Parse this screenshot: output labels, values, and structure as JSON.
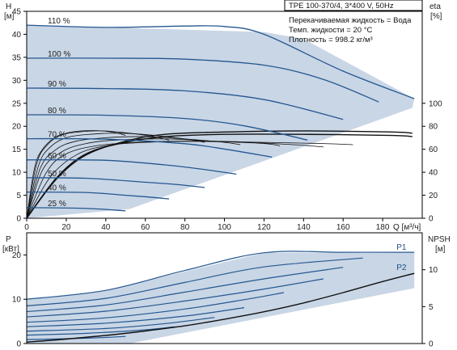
{
  "colors": {
    "envelope": "#c9d6e6",
    "curve": "#24578f",
    "efficiency": "#111111",
    "frame": "#000000"
  },
  "info_box": {
    "title": "TPE 100-370/4, 3*400 V, 50Hz",
    "line1": "Перекачиваемая жидкость = Вода",
    "line2": "Темп. жидкости = 20 °C",
    "line3": "Плотность = 998.2 кг/м³"
  },
  "top_axes": {
    "y_left_title": "H",
    "y_left_unit": "[м]",
    "y_right_title": "eta",
    "y_right_unit": "[%]",
    "x_unit": "Q [м³/ч]"
  },
  "bottom_axes": {
    "y_left_title": "P",
    "y_left_unit": "[кВт]",
    "y_right_title": "NPSH",
    "y_right_unit": "[м]"
  },
  "chart_data": [
    {
      "type": "line",
      "xlim": [
        0,
        200
      ],
      "ylim": [
        0,
        45
      ],
      "y2lim": [
        0,
        180
      ],
      "x_ticks": [
        0,
        20,
        40,
        60,
        80,
        100,
        120,
        140,
        160,
        180
      ],
      "y_ticks": [
        0,
        5,
        10,
        15,
        20,
        25,
        30,
        35,
        40,
        45
      ],
      "y2_ticks": [
        0,
        20,
        40,
        60,
        80,
        100
      ],
      "grid": false,
      "envelope": {
        "x": [
          0,
          52,
          195,
          196,
          140,
          120,
          0
        ],
        "y": [
          0,
          2,
          24,
          26,
          39,
          40.5,
          42
        ]
      },
      "series": [
        {
          "name": "110 %",
          "x": [
            0,
            40,
            80,
            100,
            120,
            160,
            196
          ],
          "y": [
            42,
            41.5,
            41.8,
            41.7,
            40,
            32,
            26
          ]
        },
        {
          "name": "100 %",
          "x": [
            0,
            40,
            80,
            120,
            150,
            178
          ],
          "y": [
            34.8,
            34.8,
            34.6,
            33.3,
            30.2,
            25.3
          ]
        },
        {
          "name": "90 %",
          "x": [
            0,
            40,
            80,
            120,
            160
          ],
          "y": [
            28.3,
            28.2,
            27.7,
            25.8,
            21.5
          ]
        },
        {
          "name": "80 %",
          "x": [
            0,
            40,
            80,
            110,
            142
          ],
          "y": [
            22.5,
            22.4,
            21.7,
            20.1,
            17
          ]
        },
        {
          "name": "70 %",
          "x": [
            0,
            40,
            80,
            102,
            124
          ],
          "y": [
            17.3,
            17.2,
            16.2,
            14.9,
            13.3
          ]
        },
        {
          "name": "60 %",
          "x": [
            0,
            40,
            70,
            88,
            106
          ],
          "y": [
            12.7,
            12.6,
            11.6,
            10.7,
            9.6
          ]
        },
        {
          "name": "50 %",
          "x": [
            0,
            30,
            58,
            74,
            90
          ],
          "y": [
            8.8,
            8.7,
            7.9,
            7.4,
            6.7
          ]
        },
        {
          "name": "40 %",
          "x": [
            0,
            30,
            50,
            62,
            72
          ],
          "y": [
            5.7,
            5.6,
            5,
            4.6,
            4.2
          ]
        },
        {
          "name": "25 %",
          "x": [
            0,
            25,
            37,
            44,
            50
          ],
          "y": [
            2.3,
            2.2,
            2,
            1.8,
            1.6
          ]
        }
      ],
      "efficiency_series_percent": [
        {
          "x": [
            0,
            15,
            30,
            50,
            70,
            100,
            140,
            185,
            195
          ],
          "y": [
            0,
            34,
            55,
            67,
            73,
            75,
            76,
            75,
            74
          ]
        },
        {
          "x": [
            0,
            15,
            30,
            50,
            70,
            100,
            140,
            185,
            195
          ],
          "y": [
            0,
            35,
            56,
            66,
            71,
            73,
            73,
            72,
            71
          ]
        },
        {
          "x": [
            0,
            12,
            25,
            40,
            60,
            90,
            120,
            150,
            165
          ],
          "y": [
            0,
            36,
            55,
            63,
            66,
            67,
            66,
            65,
            64
          ]
        },
        {
          "x": [
            0,
            10,
            20,
            35,
            55,
            80,
            110,
            135,
            150
          ],
          "y": [
            0,
            40,
            56,
            63,
            66,
            67,
            66,
            64,
            62
          ]
        },
        {
          "x": [
            0,
            8,
            18,
            30,
            45,
            70,
            95,
            120,
            128
          ],
          "y": [
            0,
            42,
            58,
            65,
            68,
            69,
            67,
            65,
            63
          ]
        },
        {
          "x": [
            0,
            7,
            15,
            25,
            40,
            60,
            80,
            100,
            108
          ],
          "y": [
            0,
            44,
            60,
            67,
            70,
            71,
            69,
            66,
            64
          ]
        },
        {
          "x": [
            0,
            6,
            12,
            20,
            32,
            48,
            65,
            80,
            90
          ],
          "y": [
            0,
            46,
            62,
            70,
            73,
            74,
            72,
            69,
            66
          ]
        },
        {
          "x": [
            0,
            5,
            10,
            17,
            26,
            38,
            52,
            64,
            72
          ],
          "y": [
            0,
            47,
            63,
            72,
            75,
            76,
            74,
            71,
            68
          ]
        },
        {
          "x": [
            0,
            4,
            8,
            14,
            20,
            28,
            38,
            46,
            50
          ],
          "y": [
            0,
            44,
            60,
            70,
            74,
            76,
            76,
            74,
            72
          ]
        }
      ]
    },
    {
      "type": "line",
      "xlim": [
        0,
        200
      ],
      "ylim": [
        0,
        25
      ],
      "y2lim": [
        0,
        15
      ],
      "y_ticks": [
        0,
        10,
        20
      ],
      "y2_ticks": [
        0,
        5,
        10
      ],
      "grid": false,
      "envelope": {
        "x": [
          0,
          52,
          196,
          196,
          120,
          40,
          0
        ],
        "y": [
          0,
          0,
          12.5,
          20.5,
          20.5,
          12,
          10
        ]
      },
      "series": [
        {
          "name": "P1",
          "x": [
            0,
            40,
            80,
            120,
            160,
            196
          ],
          "y": [
            10,
            12,
            16.5,
            20.5,
            20.6,
            20.6
          ]
        },
        {
          "name": "",
          "x": [
            0,
            40,
            80,
            120,
            170
          ],
          "y": [
            8.5,
            10.2,
            13.8,
            17.3,
            19.3
          ]
        },
        {
          "name": "",
          "x": [
            0,
            40,
            80,
            120,
            160
          ],
          "y": [
            7.2,
            8.7,
            11.6,
            14.6,
            17.2
          ]
        },
        {
          "name": "",
          "x": [
            0,
            40,
            80,
            120,
            150
          ],
          "y": [
            6,
            7.3,
            9.6,
            12.3,
            14.6
          ]
        },
        {
          "name": "",
          "x": [
            0,
            40,
            80,
            110,
            130
          ],
          "y": [
            4.8,
            5.8,
            7.8,
            9.9,
            11.5
          ]
        },
        {
          "name": "",
          "x": [
            0,
            40,
            80,
            110
          ],
          "y": [
            3.8,
            4.6,
            6.2,
            8.1
          ]
        },
        {
          "name": "",
          "x": [
            0,
            40,
            70,
            95
          ],
          "y": [
            2.8,
            3.4,
            4.5,
            5.9
          ]
        },
        {
          "name": "",
          "x": [
            0,
            30,
            60,
            75
          ],
          "y": [
            1.9,
            2.3,
            3.1,
            3.8
          ]
        },
        {
          "name": "",
          "x": [
            0,
            30,
            50
          ],
          "y": [
            0.9,
            1.2,
            1.6
          ]
        }
      ],
      "npsh_series": {
        "name": "P2",
        "x": [
          0,
          20,
          40,
          60,
          80,
          100,
          120,
          140,
          160,
          180,
          196
        ],
        "y": [
          0.2,
          0.6,
          1.1,
          1.7,
          2.4,
          3.3,
          4.3,
          5.5,
          6.9,
          8.4,
          9.5
        ]
      }
    }
  ]
}
